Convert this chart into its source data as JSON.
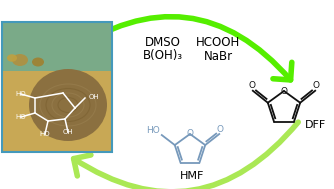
{
  "bg_color": "#ffffff",
  "arrow_color": "#55ee00",
  "arrow_color_bottom": "#aae855",
  "text_left1": "DMSO",
  "text_left2": "B(OH)₃",
  "text_right1": "HCOOH",
  "text_right2": "NaBr",
  "label_dff": "DFF",
  "label_hmf": "HMF",
  "dff_color": "#111111",
  "hmf_color": "#7799bb",
  "figsize": [
    3.34,
    1.89
  ],
  "dpi": 100,
  "hay_edge_color": "#4499bb",
  "hay_bg1": "#7aaa66",
  "hay_bg2": "#b8a060",
  "hay_bale_color": "#8b7040"
}
